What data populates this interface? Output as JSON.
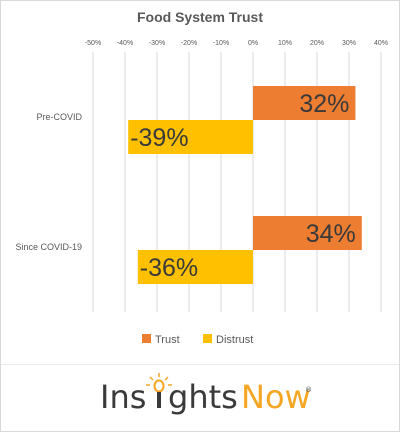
{
  "chart_data": {
    "type": "bar",
    "orientation": "horizontal",
    "title": "Food System Trust",
    "categories": [
      "Pre-COVID",
      "Since COVID-19"
    ],
    "series": [
      {
        "name": "Trust",
        "values": [
          32,
          34
        ],
        "labels": [
          "32%",
          "34%"
        ],
        "color": "#ED7D31"
      },
      {
        "name": "Distrust",
        "values": [
          -39,
          -36
        ],
        "labels": [
          "-39%",
          "-36%"
        ],
        "color": "#FFC000"
      }
    ],
    "xlim": [
      -50,
      40
    ],
    "xticks": [
      -50,
      -40,
      -30,
      -20,
      -10,
      0,
      10,
      20,
      30,
      40
    ],
    "xtick_labels": [
      "-50%",
      "-40%",
      "-30%",
      "-20%",
      "-10%",
      "0%",
      "10%",
      "20%",
      "30%",
      "40%"
    ],
    "grid": true,
    "legend_position": "bottom"
  },
  "brand": {
    "part1": "Ins",
    "part2": "ghts",
    "part3": "Now",
    "trademark": "®",
    "text_color": "#3a3a3a",
    "accent_color": "#F5A623"
  }
}
